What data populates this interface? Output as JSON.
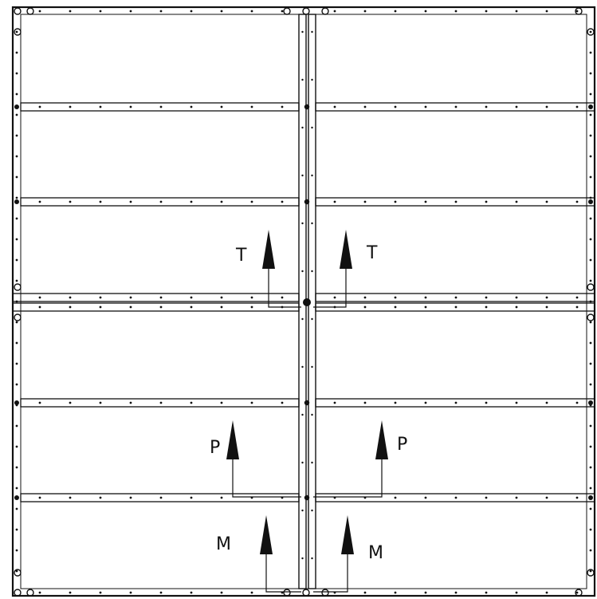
{
  "labels": {
    "top_left": "T",
    "top_right": "T",
    "mid_left": "P",
    "mid_right": "P",
    "bottom_left": "M",
    "bottom_right": "M"
  },
  "colors": {
    "line": "#111111",
    "background": "#ffffff"
  }
}
